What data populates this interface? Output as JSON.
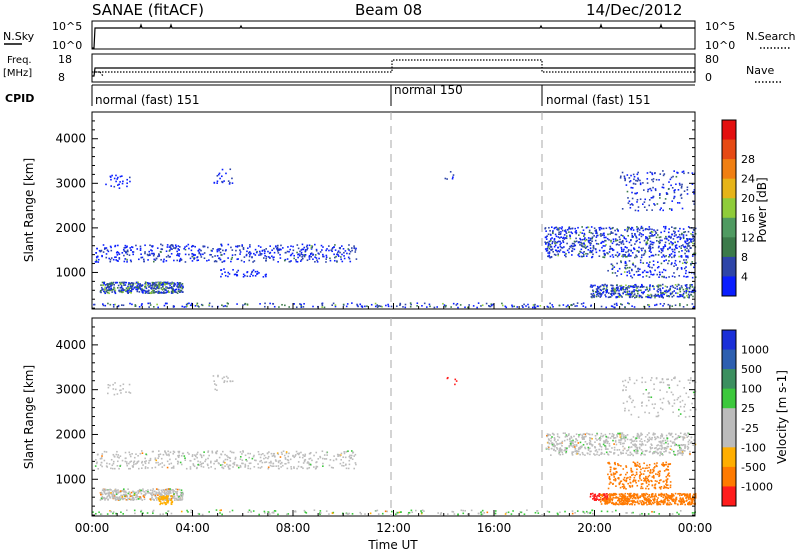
{
  "header": {
    "station": "SANAE (fitACF)",
    "beam": "Beam 08",
    "date": "14/Dec/2012"
  },
  "panels": {
    "nsky": {
      "label": "N.Sky",
      "tick_top": "10^5",
      "tick_bottom": "10^0",
      "right_label": "N.Search",
      "right_tick_top": "10^5",
      "right_tick_bottom": "10^0"
    },
    "freq": {
      "label_line1": "Freq.",
      "label_line2": "[MHz]",
      "tick_top": "18",
      "tick_bottom": "8",
      "right_label": "Nave",
      "right_tick_top": "80",
      "right_tick_bottom": "0"
    },
    "cpid": {
      "label": "CPID",
      "modes": [
        "normal (fast) 151",
        "normal 150",
        "normal (fast) 151"
      ]
    }
  },
  "colors": {
    "power_scale": [
      "#0a1eff",
      "#2e45a8",
      "#3b7a4a",
      "#4f9a61",
      "#8fcc3a",
      "#e6b418",
      "#f07f12",
      "#e64a14",
      "#e30f0f"
    ],
    "velocity_scale": [
      "#ff1c1c",
      "#ff7a00",
      "#ffae00",
      "#bcbcbc",
      "#bcbcbc",
      "#3cc83c",
      "#3b8f5f",
      "#2d5fb0",
      "#1a2fd8"
    ]
  },
  "chart_data": [
    {
      "type": "heatmap",
      "title": "",
      "quantity": "Power",
      "xlabel": "",
      "ylabel": "Slant Range [km]",
      "x_ticks": [
        "00:00",
        "04:00",
        "08:00",
        "12:00",
        "16:00",
        "20:00",
        "00:00"
      ],
      "y_ticks": [
        "1000",
        "2000",
        "3000",
        "4000"
      ],
      "ylim": [
        180,
        4600
      ],
      "xlim_hours": [
        0,
        24
      ],
      "colorbar": {
        "label": "Power [dB]",
        "ticks": [
          "4",
          "8",
          "12",
          "16",
          "20",
          "24",
          "28"
        ],
        "range": [
          0,
          30
        ]
      }
    },
    {
      "type": "heatmap",
      "title": "",
      "quantity": "Velocity",
      "xlabel": "Time UT",
      "ylabel": "Slant Range [km]",
      "x_ticks": [
        "00:00",
        "04:00",
        "08:00",
        "12:00",
        "16:00",
        "20:00",
        "00:00"
      ],
      "y_ticks": [
        "1000",
        "2000",
        "3000",
        "4000"
      ],
      "ylim": [
        180,
        4600
      ],
      "xlim_hours": [
        0,
        24
      ],
      "colorbar": {
        "label": "Velocity [m s-1]",
        "ticks": [
          "1000",
          "500",
          "100",
          "25",
          "-25",
          "-100",
          "-500",
          "-1000"
        ]
      }
    }
  ]
}
